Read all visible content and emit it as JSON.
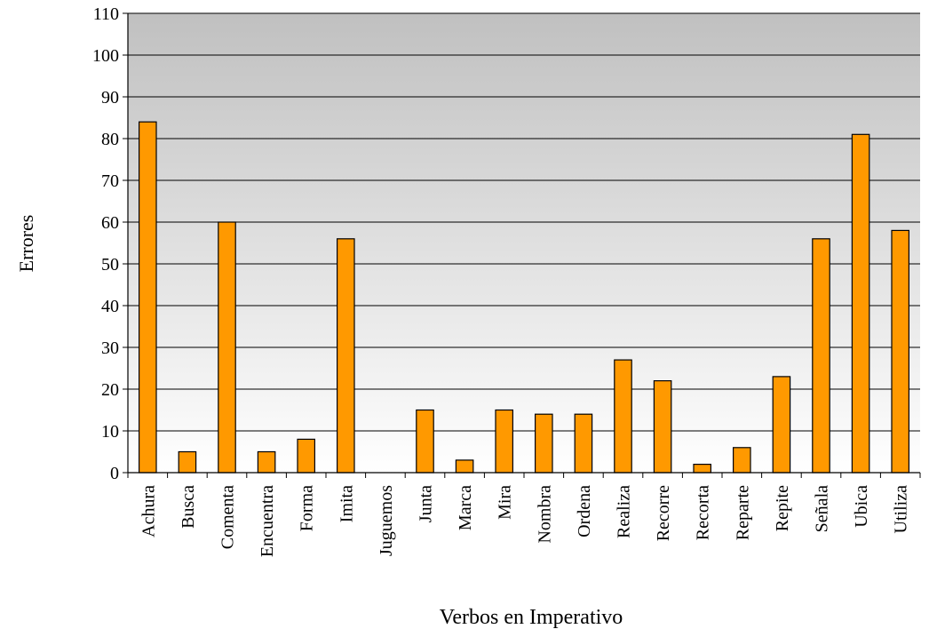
{
  "chart_data": {
    "type": "bar",
    "title": "",
    "xlabel": "Verbos en Imperativo",
    "ylabel": "Errores",
    "ylim": [
      0,
      110
    ],
    "yticks": [
      0,
      10,
      20,
      30,
      40,
      50,
      60,
      70,
      80,
      90,
      100,
      110
    ],
    "grid": true,
    "legend": "none",
    "categories": [
      "Achura",
      "Busca",
      "Comenta",
      "Encuentra",
      "Forma",
      "Imita",
      "Juguemos",
      "Junta",
      "Marca",
      "Mira",
      "Nombra",
      "Ordena",
      "Realiza",
      "Recorre",
      "Recorta",
      "Reparte",
      "Repite",
      "Señala",
      "Ubica",
      "Utiliza"
    ],
    "values": [
      84,
      5,
      60,
      5,
      8,
      56,
      0,
      15,
      3,
      15,
      14,
      14,
      27,
      22,
      2,
      6,
      23,
      56,
      81,
      58
    ],
    "colors": {
      "bar": "#ff9900",
      "bar_stroke": "#000000",
      "plot_bg_top": "#c0c0c0",
      "plot_bg_bottom": "#ffffff",
      "grid": "#000000"
    }
  }
}
